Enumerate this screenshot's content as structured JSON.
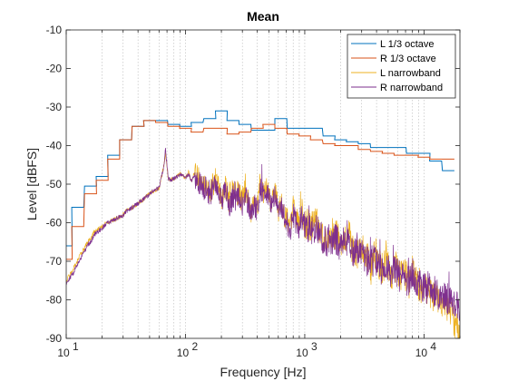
{
  "chart_data": {
    "type": "line",
    "title": "Mean",
    "xlabel": "Frequency [Hz]",
    "ylabel": "Level [dBFS]",
    "xscale": "log",
    "xlim": [
      10,
      20000
    ],
    "ylim": [
      -90,
      -10
    ],
    "xticks": [
      10,
      100,
      1000,
      10000
    ],
    "xtick_labels": [
      {
        "base": "10",
        "exp": "1"
      },
      {
        "base": "10",
        "exp": "2"
      },
      {
        "base": "10",
        "exp": "3"
      },
      {
        "base": "10",
        "exp": "4"
      }
    ],
    "yticks": [
      -90,
      -80,
      -70,
      -60,
      -50,
      -40,
      -30,
      -20,
      -10
    ],
    "grid": "x-minor-dotted",
    "legend_position": "top-right",
    "series": [
      {
        "name": "L 1/3 octave",
        "style": "step",
        "color": "#0072BD",
        "band_centers": [
          10,
          12.5,
          16,
          20,
          25,
          31.5,
          40,
          50,
          63,
          80,
          100,
          125,
          160,
          200,
          250,
          315,
          400,
          500,
          630,
          800,
          1000,
          1250,
          1600,
          2000,
          2500,
          3150,
          4000,
          5000,
          6300,
          8000,
          10000,
          12500,
          16000
        ],
        "values": [
          -66,
          -56,
          -50.5,
          -48,
          -42.5,
          -38.5,
          -35,
          -33.5,
          -33.5,
          -34.5,
          -35,
          -34,
          -33,
          -31,
          -33.5,
          -34.5,
          -36,
          -36,
          -33,
          -35.5,
          -35.5,
          -35.5,
          -37.5,
          -38.5,
          -39,
          -39.5,
          -40.5,
          -40.5,
          -40.5,
          -42,
          -42,
          -44,
          -46.5
        ]
      },
      {
        "name": "R 1/3 octave",
        "style": "step",
        "color": "#D95319",
        "band_centers": [
          10,
          12.5,
          16,
          20,
          25,
          31.5,
          40,
          50,
          63,
          80,
          100,
          125,
          160,
          200,
          250,
          315,
          400,
          500,
          630,
          800,
          1000,
          1250,
          1600,
          2000,
          2500,
          3150,
          4000,
          5000,
          6300,
          8000,
          10000,
          12500,
          16000
        ],
        "values": [
          -69.5,
          -61,
          -52.5,
          -49,
          -43.5,
          -38.5,
          -35,
          -33.5,
          -34,
          -35,
          -35.5,
          -36.5,
          -35.5,
          -35.5,
          -37,
          -36.5,
          -35.5,
          -34.5,
          -35.5,
          -37,
          -37.5,
          -38.5,
          -39.5,
          -40,
          -40,
          -41,
          -41.5,
          -42,
          -42.5,
          -42.5,
          -43,
          -43.5,
          -43.5
        ]
      },
      {
        "name": "L narrowband",
        "style": "line",
        "color": "#EDB120",
        "x": [
          10,
          11,
          12,
          13,
          14,
          15,
          16,
          17,
          18,
          19,
          20,
          22,
          24,
          26,
          28,
          30,
          32,
          34,
          36,
          38,
          40,
          44,
          48,
          52,
          56,
          60,
          64,
          66,
          68,
          70,
          72,
          75,
          80,
          85,
          90,
          95,
          100,
          106,
          112,
          118,
          125,
          132,
          140,
          150,
          160,
          170,
          180,
          190,
          200,
          212,
          224,
          236,
          250,
          265,
          280,
          300,
          315,
          335,
          355,
          375,
          400,
          425,
          450,
          475,
          500,
          530,
          560,
          600,
          630,
          670,
          710,
          750,
          800,
          850,
          900,
          950,
          1000,
          1060,
          1120,
          1180,
          1250,
          1320,
          1400,
          1500,
          1600,
          1700,
          1800,
          1900,
          2000,
          2120,
          2240,
          2360,
          2500,
          2650,
          2800,
          3000,
          3150,
          3350,
          3550,
          3750,
          4000,
          4250,
          4500,
          4750,
          5000,
          5300,
          5600,
          6000,
          6300,
          6700,
          7100,
          7500,
          8000,
          8500,
          9000,
          9500,
          10000,
          10600,
          11200,
          11800,
          12500,
          13200,
          14000,
          15000,
          16000,
          17000,
          18000,
          19000,
          20000
        ],
        "values": [
          -75,
          -73,
          -71,
          -68.5,
          -67,
          -65,
          -64,
          -62.5,
          -62,
          -61.5,
          -61,
          -60,
          -59.5,
          -59,
          -58.5,
          -58,
          -57,
          -56.5,
          -56,
          -55.5,
          -55,
          -54,
          -53,
          -52,
          -51.5,
          -51,
          -47,
          -45,
          -42,
          -46,
          -49,
          -49,
          -48.5,
          -48,
          -47.5,
          -47.5,
          -48.5,
          -47,
          -49,
          -47.5,
          -48,
          -49,
          -50,
          -49.5,
          -53,
          -50,
          -48.5,
          -51,
          -54.5,
          -50.5,
          -52,
          -56,
          -50.5,
          -53,
          -52,
          -55,
          -51.5,
          -54,
          -58,
          -54,
          -56,
          -49,
          -52,
          -51,
          -53,
          -55,
          -51,
          -57,
          -56,
          -58,
          -59,
          -62,
          -56,
          -59,
          -61,
          -57,
          -61,
          -60,
          -61,
          -60,
          -60,
          -62,
          -64,
          -64,
          -63,
          -63,
          -63,
          -64,
          -66,
          -64,
          -64,
          -63,
          -67,
          -69,
          -68,
          -67,
          -68,
          -68,
          -73,
          -69,
          -68,
          -71,
          -72,
          -70,
          -71,
          -74,
          -71,
          -72,
          -74,
          -73,
          -74,
          -76,
          -73,
          -75,
          -76,
          -77,
          -77,
          -77,
          -78,
          -79,
          -78,
          -80,
          -81,
          -80,
          -82,
          -84,
          -86,
          -88,
          -91
        ]
      },
      {
        "name": "R narrowband",
        "style": "line",
        "color": "#7E2F8E",
        "x": [
          10,
          11,
          12,
          13,
          14,
          15,
          16,
          17,
          18,
          19,
          20,
          22,
          24,
          26,
          28,
          30,
          32,
          34,
          36,
          38,
          40,
          44,
          48,
          52,
          56,
          60,
          64,
          66,
          68,
          70,
          72,
          75,
          80,
          85,
          90,
          95,
          100,
          106,
          112,
          118,
          125,
          132,
          140,
          150,
          160,
          170,
          180,
          190,
          200,
          212,
          224,
          236,
          250,
          265,
          280,
          300,
          315,
          335,
          355,
          375,
          400,
          425,
          450,
          475,
          500,
          530,
          560,
          600,
          630,
          670,
          710,
          750,
          800,
          850,
          900,
          950,
          1000,
          1060,
          1120,
          1180,
          1250,
          1320,
          1400,
          1500,
          1600,
          1700,
          1800,
          1900,
          2000,
          2120,
          2240,
          2360,
          2500,
          2650,
          2800,
          3000,
          3150,
          3350,
          3550,
          3750,
          4000,
          4250,
          4500,
          4750,
          5000,
          5300,
          5600,
          6000,
          6300,
          6700,
          7100,
          7500,
          8000,
          8500,
          9000,
          9500,
          10000,
          10600,
          11200,
          11800,
          12500,
          13200,
          14000,
          15000,
          16000,
          17000,
          18000,
          19000,
          20000
        ],
        "values": [
          -75.5,
          -74,
          -72,
          -69.5,
          -68,
          -66,
          -65,
          -63.5,
          -62.5,
          -62,
          -61.5,
          -60,
          -59.5,
          -59,
          -58.5,
          -58,
          -57,
          -56.5,
          -56,
          -55.5,
          -55,
          -54,
          -53,
          -52,
          -51.5,
          -51,
          -47,
          -45,
          -41,
          -45,
          -48.5,
          -49,
          -48.5,
          -48,
          -47.5,
          -47.5,
          -48.5,
          -47.5,
          -49,
          -48,
          -49,
          -50,
          -51,
          -51,
          -53,
          -51,
          -50,
          -52,
          -55,
          -52,
          -53,
          -56,
          -53,
          -54,
          -53,
          -55,
          -53,
          -55,
          -58,
          -55,
          -57,
          -51,
          -53,
          -52,
          -54,
          -56,
          -53,
          -58,
          -57,
          -58,
          -60,
          -62,
          -58,
          -60,
          -62,
          -59,
          -62,
          -61,
          -62,
          -61,
          -62,
          -63,
          -64,
          -65,
          -64,
          -64,
          -64,
          -65,
          -66,
          -65,
          -66,
          -65,
          -67,
          -68,
          -68,
          -68,
          -69,
          -70,
          -71,
          -70,
          -70,
          -72,
          -72,
          -71,
          -72,
          -73,
          -72,
          -73,
          -74,
          -74,
          -75,
          -75,
          -74,
          -75,
          -76,
          -77,
          -76,
          -77,
          -77,
          -77,
          -78,
          -79,
          -78,
          -79,
          -80,
          -80,
          -80,
          -82,
          -83
        ]
      }
    ]
  }
}
